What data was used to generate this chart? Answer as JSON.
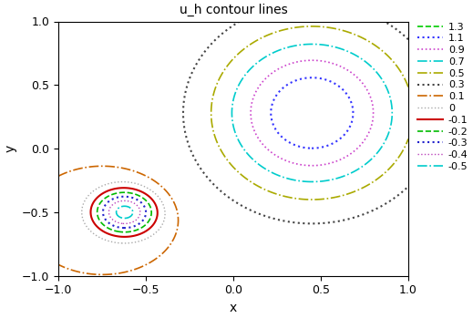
{
  "title": "u_h contour lines",
  "xlabel": "x",
  "ylabel": "y",
  "xlim": [
    -1,
    1
  ],
  "ylim": [
    -1,
    1
  ],
  "levels": [
    1.3,
    1.1,
    0.9,
    0.7,
    0.5,
    0.3,
    0.1,
    0.0,
    -0.1,
    -0.2,
    -0.3,
    -0.4,
    -0.5
  ],
  "level_styles": {
    "1.3": {
      "color": "#00cc00",
      "linestyle": "dashed",
      "linewidth": 1.2
    },
    "1.1": {
      "color": "#3333ff",
      "linestyle": "dotted",
      "linewidth": 1.5
    },
    "0.9": {
      "color": "#cc44cc",
      "linestyle": "dotted",
      "linewidth": 1.2
    },
    "0.7": {
      "color": "#00cccc",
      "linestyle": "dashdot",
      "linewidth": 1.2
    },
    "0.5": {
      "color": "#aaaa00",
      "linestyle": "dashdot",
      "linewidth": 1.2
    },
    "0.3": {
      "color": "#444444",
      "linestyle": "dotted",
      "linewidth": 1.5
    },
    "0.1": {
      "color": "#cc6600",
      "linestyle": "dashdot",
      "linewidth": 1.2
    },
    "0.0": {
      "color": "#aaaaaa",
      "linestyle": "dotted",
      "linewidth": 1.0
    },
    "-0.1": {
      "color": "#cc0000",
      "linestyle": "solid",
      "linewidth": 1.5
    },
    "-0.2": {
      "color": "#00bb00",
      "linestyle": "dashed",
      "linewidth": 1.2
    },
    "-0.3": {
      "color": "#2222cc",
      "linestyle": "dotted",
      "linewidth": 1.5
    },
    "-0.4": {
      "color": "#bb44bb",
      "linestyle": "dotted",
      "linewidth": 1.0
    },
    "-0.5": {
      "color": "#00cccc",
      "linestyle": "dashdot",
      "linewidth": 1.2
    }
  },
  "figsize": [
    5.19,
    3.49
  ],
  "dpi": 100
}
